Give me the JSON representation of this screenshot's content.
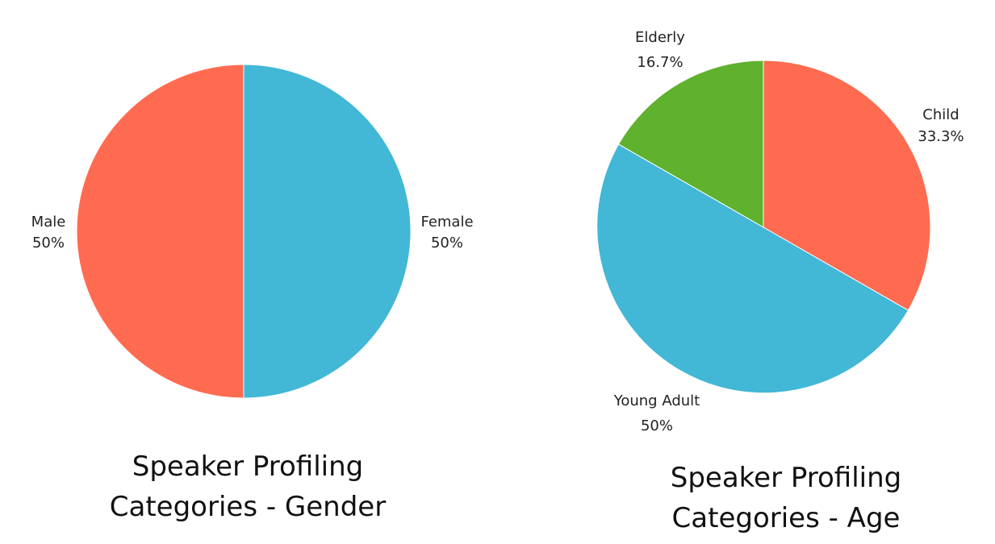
{
  "chart_data": [
    {
      "type": "pie",
      "title_lines": [
        "Speaker Profiling",
        "Categories - Gender"
      ],
      "slices": [
        {
          "label": "Female",
          "value": 50,
          "value_label": "50%",
          "color": "#42B7D6"
        },
        {
          "label": "Male",
          "value": 50,
          "value_label": "50%",
          "color": "#FF6B50"
        }
      ]
    },
    {
      "type": "pie",
      "title_lines": [
        "Speaker Profiling",
        "Categories - Age"
      ],
      "slices": [
        {
          "label": "Child",
          "value": 33.3,
          "value_label": "33.3%",
          "color": "#FF6B50"
        },
        {
          "label": "Young Adult",
          "value": 50,
          "value_label": "50%",
          "color": "#42B7D6"
        },
        {
          "label": "Elderly",
          "value": 16.7,
          "value_label": "16.7%",
          "color": "#5FB12E"
        }
      ]
    }
  ]
}
